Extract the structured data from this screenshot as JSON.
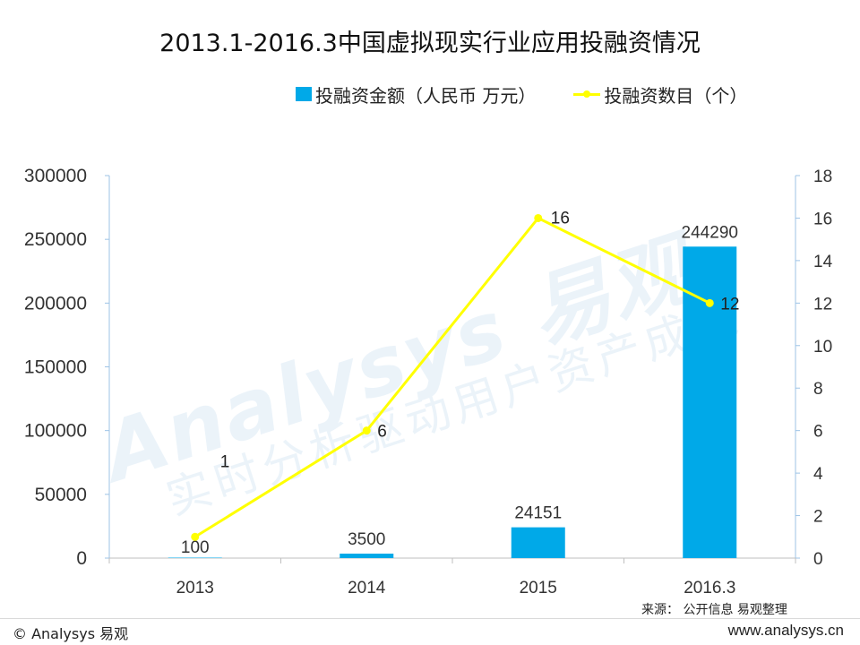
{
  "chart_data": {
    "type": "bar+line",
    "title": "2013.1-2016.3中国虚拟现实行业应用投融资情况",
    "categories": [
      "2013",
      "2014",
      "2015",
      "2016.3"
    ],
    "series": [
      {
        "name": "投融资金额（人民币 万元）",
        "type": "bar",
        "axis": "left",
        "color": "#00a9e8",
        "values": [
          100,
          3500,
          24151,
          244290
        ],
        "data_labels": [
          "100",
          "3500",
          "24151",
          "244290"
        ]
      },
      {
        "name": "投融资数目（个）",
        "type": "line",
        "axis": "right",
        "color": "#ffff00",
        "values": [
          1,
          6,
          16,
          12
        ],
        "data_labels": [
          "1",
          "6",
          "16",
          "12"
        ]
      }
    ],
    "y_left": {
      "range": [
        0,
        300000
      ],
      "ticks": [
        "0",
        "50000",
        "100000",
        "150000",
        "200000",
        "250000",
        "300000"
      ]
    },
    "y_right": {
      "range": [
        0,
        18
      ],
      "ticks": [
        "0",
        "2",
        "4",
        "6",
        "8",
        "10",
        "12",
        "14",
        "16",
        "18"
      ]
    },
    "grid": false,
    "legend_position": "top"
  },
  "legend": {
    "bar_label": "投融资金额（人民币 万元）",
    "line_label": "投融资数目（个）"
  },
  "watermark": {
    "brand": "Analysys 易观",
    "slogan": "实时分析驱动用户资产成长"
  },
  "source": "来源： 公开信息 易观整理",
  "footer": {
    "left": "© Analysys 易观",
    "right": "www.analysys.cn"
  }
}
